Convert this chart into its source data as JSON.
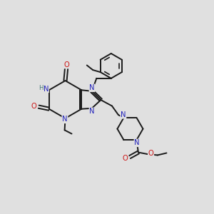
{
  "bg_color": "#e0e0e0",
  "bond_color": "#1a1a1a",
  "N_color": "#2222bb",
  "O_color": "#cc1111",
  "H_color": "#447777",
  "lw": 1.4,
  "lw_thin": 0.9,
  "fs": 7.2,
  "fs_small": 6.2,
  "figsize": [
    3.0,
    3.0
  ],
  "dpi": 100,
  "xlim": [
    0,
    10
  ],
  "ylim": [
    0,
    10
  ]
}
